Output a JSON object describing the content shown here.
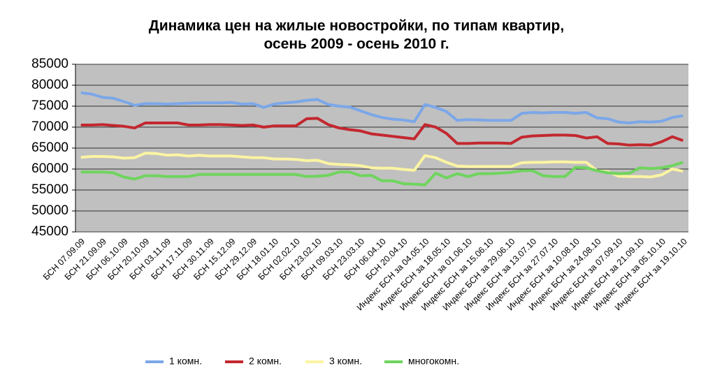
{
  "chart_data": {
    "type": "line",
    "title": [
      "Динамика цен на жилые новостройки, по типам квартир,",
      "осень 2009 - осень 2010 г."
    ],
    "categories": [
      "БСН 07.09.09",
      null,
      "БСН 21.09.09",
      null,
      "БСН 06.10.09",
      null,
      "БСН 20.10.09",
      null,
      "БСН 03.11.09",
      null,
      "БСН 17.11.09",
      null,
      "БСН 30.11.09",
      null,
      "БСН 15.12.09",
      null,
      "БСН 29.12.09",
      null,
      "БСН 18.01.10",
      null,
      "БСН 02.02.10",
      null,
      "БСН 23.02.10",
      null,
      "БСН 09.03.10",
      null,
      "БСН 23.03.10",
      null,
      "БСН 06.04.10",
      null,
      "БСН 20.04.10",
      null,
      "Индекс БСН за 04.05.10",
      null,
      "Индекс БСН за 18.05.10",
      null,
      "Индекс БСН за 01.06.10",
      null,
      "Индекс БСН за 15.06.10",
      null,
      "Индекс БСН за 29.06.10",
      null,
      "Индекс БСН за 13.07.10",
      null,
      "Индекс БСН за 27.07.10",
      null,
      "Индекс БСН за 10.08.10",
      null,
      "Индекс БСН за 24.08.10",
      null,
      "Индекс БСН за 07.09.10",
      null,
      "Индекс БСН за 21.09.10",
      null,
      "Индекс БСН за 05.10.10",
      null,
      "Индекс БСН за 19.10.10"
    ],
    "series": [
      {
        "name": "1 комн.",
        "color": "#7ba7e8",
        "values": [
          78200,
          77900,
          77100,
          76900,
          76100,
          75200,
          75600,
          75600,
          75500,
          75600,
          75700,
          75800,
          75800,
          75800,
          75900,
          75500,
          75600,
          74700,
          75500,
          75800,
          76000,
          76400,
          76600,
          75400,
          75000,
          74800,
          73900,
          73000,
          72300,
          71900,
          71700,
          71300,
          75400,
          74700,
          73700,
          71600,
          71800,
          71700,
          71600,
          71600,
          71600,
          73300,
          73500,
          73400,
          73500,
          73500,
          73300,
          73500,
          72200,
          72000,
          71200,
          71000,
          71300,
          71200,
          71400,
          72300,
          72700
        ]
      },
      {
        "name": "2 комн.",
        "color": "#c3282f",
        "values": [
          70500,
          70500,
          70600,
          70400,
          70200,
          69800,
          71000,
          71000,
          71000,
          71000,
          70500,
          70500,
          70600,
          70600,
          70500,
          70400,
          70500,
          70000,
          70300,
          70300,
          70300,
          72000,
          72100,
          70600,
          69800,
          69400,
          69100,
          68400,
          68100,
          67800,
          67500,
          67200,
          70600,
          70000,
          68500,
          66100,
          66100,
          66200,
          66200,
          66200,
          66100,
          67600,
          67900,
          68000,
          68100,
          68100,
          68000,
          67400,
          67700,
          66100,
          66000,
          65700,
          65800,
          65700,
          66500,
          67700,
          66800
        ]
      },
      {
        "name": "3 комн.",
        "color": "#fbf4a2",
        "values": [
          62800,
          63000,
          63000,
          62900,
          62600,
          62700,
          63800,
          63700,
          63300,
          63400,
          63100,
          63300,
          63100,
          63100,
          63100,
          62900,
          62700,
          62700,
          62400,
          62400,
          62300,
          62000,
          62100,
          61300,
          61100,
          61000,
          60800,
          60300,
          60200,
          60200,
          59900,
          59700,
          63200,
          62700,
          61600,
          60700,
          60600,
          60600,
          60600,
          60600,
          60600,
          61500,
          61600,
          61600,
          61700,
          61700,
          61600,
          61600,
          59600,
          59400,
          58300,
          58200,
          58200,
          58100,
          58600,
          60000,
          59500
        ]
      },
      {
        "name": "многокомн.",
        "color": "#6fd45e",
        "values": [
          59300,
          59300,
          59300,
          59100,
          58100,
          57600,
          58400,
          58400,
          58200,
          58200,
          58200,
          58700,
          58700,
          58700,
          58700,
          58700,
          58700,
          58700,
          58700,
          58700,
          58700,
          58200,
          58300,
          58500,
          59300,
          59300,
          58400,
          58500,
          57200,
          57200,
          56500,
          56400,
          56200,
          59000,
          57900,
          58900,
          58200,
          58900,
          58900,
          59000,
          59200,
          59600,
          59600,
          58400,
          58200,
          58200,
          60400,
          60300,
          59600,
          59100,
          58900,
          59000,
          60300,
          60100,
          60300,
          60800,
          61600
        ]
      }
    ],
    "ylim": [
      45000,
      85000
    ],
    "yticks": [
      45000,
      50000,
      55000,
      60000,
      65000,
      70000,
      75000,
      80000,
      85000
    ],
    "grid": true,
    "legend": "bottom"
  }
}
